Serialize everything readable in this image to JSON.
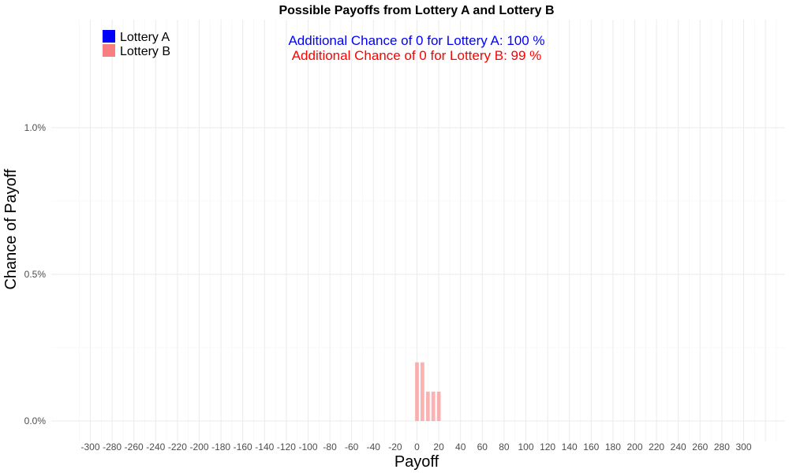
{
  "chart_data": {
    "type": "bar",
    "title": "Possible Payoffs from Lottery A and Lottery B",
    "xlabel": "Payoff",
    "ylabel": "Chance of Payoff",
    "xlim": [
      -310,
      310
    ],
    "ylim": [
      0,
      1.24
    ],
    "x_ticks": [
      -300,
      -280,
      -260,
      -240,
      -220,
      -200,
      -180,
      -160,
      -140,
      -120,
      -100,
      -80,
      -60,
      -40,
      -20,
      0,
      20,
      40,
      60,
      80,
      100,
      120,
      140,
      160,
      180,
      200,
      220,
      240,
      260,
      280,
      300
    ],
    "y_ticks": [
      0,
      0.5,
      1.0
    ],
    "y_tick_labels": [
      "0.0%",
      "0.5%",
      "1.0%"
    ],
    "grid": true,
    "legend_position": "top-left",
    "series": [
      {
        "name": "Lottery A",
        "color": "#0000ff",
        "x": [],
        "values": []
      },
      {
        "name": "Lottery B",
        "color": "#f87f7f",
        "x": [
          0,
          5,
          10,
          15,
          20
        ],
        "values": [
          0.2,
          0.2,
          0.1,
          0.1,
          0.1
        ]
      }
    ],
    "annotations": [
      {
        "text": "Additional Chance of 0 for Lottery A:  100 %",
        "color": "#0000ff"
      },
      {
        "text": "Additional Chance of 0 for Lottery B:  99 %",
        "color": "#ff0000"
      }
    ]
  }
}
